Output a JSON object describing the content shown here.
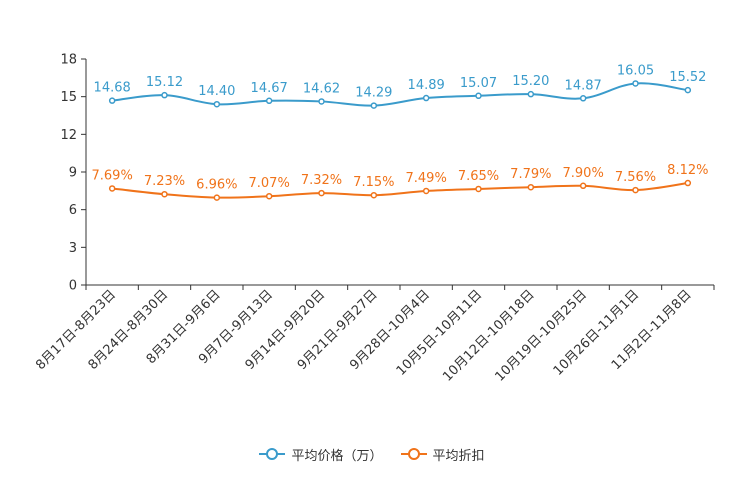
{
  "chart_data": {
    "type": "line",
    "categories": [
      "8月17日-8月23日",
      "8月24日-8月30日",
      "8月31日-9月6日",
      "9月7日-9月13日",
      "9月14日-9月20日",
      "9月21日-9月27日",
      "9月28日-10月4日",
      "10月5日-10月11日",
      "10月12日-10月18日",
      "10月19日-10月25日",
      "10月26日-11月1日",
      "11月2日-11月8日"
    ],
    "yticks": [
      "0",
      "3",
      "6",
      "9",
      "12",
      "15",
      "18"
    ],
    "ylim": [
      0,
      18
    ],
    "series": [
      {
        "name": "平均价格（万）",
        "color": "#3a9bcb",
        "values": [
          14.68,
          15.12,
          14.4,
          14.67,
          14.62,
          14.29,
          14.89,
          15.07,
          15.2,
          14.87,
          16.05,
          15.52
        ],
        "labels": [
          "14.68",
          "15.12",
          "14.40",
          "14.67",
          "14.62",
          "14.29",
          "14.89",
          "15.07",
          "15.20",
          "14.87",
          "16.05",
          "15.52"
        ]
      },
      {
        "name": "平均折扣",
        "color": "#f0731a",
        "values": [
          7.69,
          7.23,
          6.96,
          7.07,
          7.32,
          7.15,
          7.49,
          7.65,
          7.79,
          7.9,
          7.56,
          8.12
        ],
        "labels": [
          "7.69%",
          "7.23%",
          "6.96%",
          "7.07%",
          "7.32%",
          "7.15%",
          "7.49%",
          "7.65%",
          "7.79%",
          "7.90%",
          "7.56%",
          "8.12%"
        ]
      }
    ]
  }
}
